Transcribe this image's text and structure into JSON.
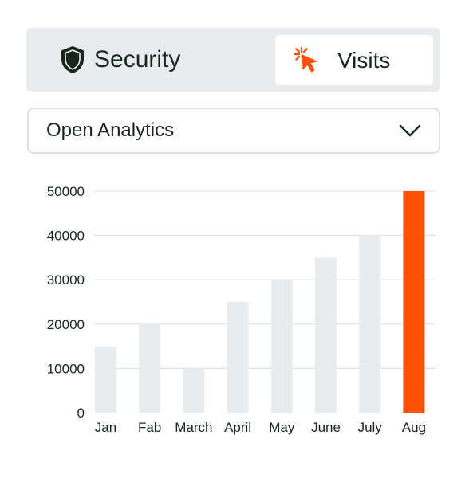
{
  "tabs": {
    "items": [
      {
        "label": "Security",
        "icon": "shield-icon",
        "selected": false
      },
      {
        "label": "Visits",
        "icon": "cursor-click-icon",
        "selected": true
      }
    ]
  },
  "dropdown": {
    "label": "Open Analytics",
    "icon": "chevron-down-icon"
  },
  "colors": {
    "accent": "#ff5206",
    "bar": "#e9ecef",
    "text": "#17261d",
    "panel": "#e9ecef"
  },
  "chart_data": {
    "type": "bar",
    "categories": [
      "Jan",
      "Fab",
      "March",
      "April",
      "May",
      "June",
      "July",
      "Aug"
    ],
    "values": [
      15000,
      20000,
      10000,
      25000,
      30000,
      35000,
      40000,
      50000
    ],
    "highlight_index": 7,
    "yticks": [
      0,
      10000,
      20000,
      30000,
      40000,
      50000
    ],
    "ylim": [
      0,
      50000
    ],
    "grid": true,
    "title": "",
    "xlabel": "",
    "ylabel": ""
  }
}
